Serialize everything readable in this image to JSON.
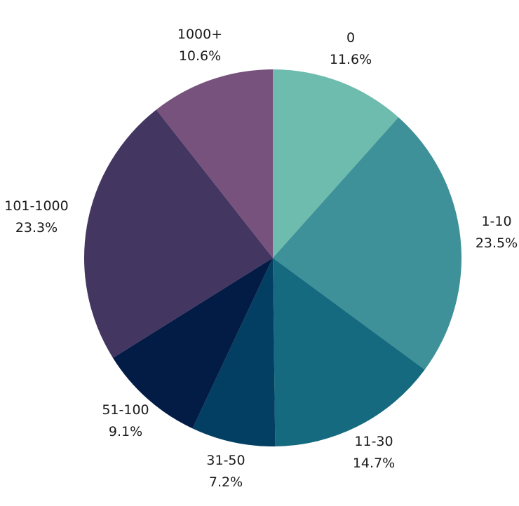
{
  "chart_data": {
    "type": "pie",
    "title": "",
    "start_angle_deg": 0,
    "direction": "clockwise",
    "legend": "none",
    "slices": [
      {
        "label": "0",
        "value": 11.6,
        "value_label": "11.6%",
        "color": "#6dbcae"
      },
      {
        "label": "1-10",
        "value": 23.5,
        "value_label": "23.5%",
        "color": "#3e9198"
      },
      {
        "label": "11-30",
        "value": 14.7,
        "value_label": "14.7%",
        "color": "#166a80"
      },
      {
        "label": "31-50",
        "value": 7.2,
        "value_label": "7.2%",
        "color": "#033f62"
      },
      {
        "label": "51-100",
        "value": 9.1,
        "value_label": "9.1%",
        "color": "#031c46"
      },
      {
        "label": "101-1000",
        "value": 23.3,
        "value_label": "23.3%",
        "color": "#433661"
      },
      {
        "label": "1000+",
        "value": 10.6,
        "value_label": "10.6%",
        "color": "#77527d"
      }
    ]
  }
}
